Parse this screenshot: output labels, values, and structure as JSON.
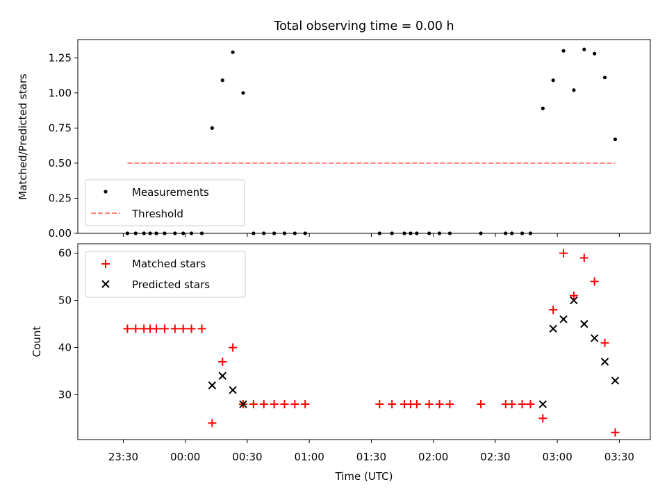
{
  "title": "Total observing time = 0.00 h",
  "xlabel": "Time (UTC)",
  "x_tick_labels": [
    "23:30",
    "00:00",
    "00:30",
    "01:00",
    "01:30",
    "02:00",
    "02:30",
    "03:00",
    "03:30"
  ],
  "colors": {
    "measurement": "#000000",
    "threshold": "#ff7f7f",
    "matched": "#ff0000",
    "predicted": "#000000"
  },
  "chart_data": [
    {
      "type": "scatter",
      "ylabel": "Matched/Predicted stars",
      "xlim_minutes": [
        -52,
        225
      ],
      "ylim": [
        0,
        1.38
      ],
      "yticks": [
        0,
        0.25,
        0.5,
        0.75,
        1.0,
        1.25
      ],
      "ytick_labels": [
        "0.00",
        "0.25",
        "0.50",
        "0.75",
        "1.00",
        "1.25"
      ],
      "legend": {
        "position": "lower-left",
        "entries": [
          "Measurements",
          "Threshold"
        ]
      },
      "series": [
        {
          "name": "Measurements",
          "marker": "dot",
          "points": [
            [
              "23:32",
              0.0
            ],
            [
              "23:36",
              0.0
            ],
            [
              "23:40",
              0.0
            ],
            [
              "23:43",
              0.0
            ],
            [
              "23:46",
              0.0
            ],
            [
              "23:50",
              0.0
            ],
            [
              "23:55",
              0.0
            ],
            [
              "23:59",
              0.0
            ],
            [
              "00:03",
              0.0
            ],
            [
              "00:08",
              0.0
            ],
            [
              "00:13",
              0.75
            ],
            [
              "00:18",
              1.09
            ],
            [
              "00:23",
              1.29
            ],
            [
              "00:28",
              1.0
            ],
            [
              "00:33",
              0.0
            ],
            [
              "00:38",
              0.0
            ],
            [
              "00:43",
              0.0
            ],
            [
              "00:48",
              0.0
            ],
            [
              "00:53",
              0.0
            ],
            [
              "00:58",
              0.0
            ],
            [
              "01:34",
              0.0
            ],
            [
              "01:40",
              0.0
            ],
            [
              "01:46",
              0.0
            ],
            [
              "01:49",
              0.0
            ],
            [
              "01:52",
              0.0
            ],
            [
              "01:58",
              0.0
            ],
            [
              "02:03",
              0.0
            ],
            [
              "02:08",
              0.0
            ],
            [
              "02:23",
              0.0
            ],
            [
              "02:35",
              0.0
            ],
            [
              "02:38",
              0.0
            ],
            [
              "02:43",
              0.0
            ],
            [
              "02:47",
              0.0
            ],
            [
              "02:53",
              0.89
            ],
            [
              "02:58",
              1.09
            ],
            [
              "03:03",
              1.3
            ],
            [
              "03:08",
              1.02
            ],
            [
              "03:13",
              1.31
            ],
            [
              "03:18",
              1.28
            ],
            [
              "03:23",
              1.11
            ],
            [
              "03:28",
              0.67
            ]
          ]
        },
        {
          "name": "Threshold",
          "marker": "dashed-line",
          "points": [
            [
              "23:32",
              0.5
            ],
            [
              "03:28",
              0.5
            ]
          ]
        }
      ]
    },
    {
      "type": "scatter",
      "ylabel": "Count",
      "xlim_minutes": [
        -52,
        225
      ],
      "ylim": [
        20.5,
        62
      ],
      "yticks": [
        30,
        40,
        50,
        60
      ],
      "ytick_labels": [
        "30",
        "40",
        "50",
        "60"
      ],
      "legend": {
        "position": "upper-left",
        "entries": [
          "Matched stars",
          "Predicted stars"
        ]
      },
      "series": [
        {
          "name": "Matched stars",
          "marker": "plus",
          "points": [
            [
              "23:32",
              44
            ],
            [
              "23:36",
              44
            ],
            [
              "23:40",
              44
            ],
            [
              "23:43",
              44
            ],
            [
              "23:46",
              44
            ],
            [
              "23:50",
              44
            ],
            [
              "23:55",
              44
            ],
            [
              "23:59",
              44
            ],
            [
              "00:03",
              44
            ],
            [
              "00:08",
              44
            ],
            [
              "00:13",
              24
            ],
            [
              "00:18",
              37
            ],
            [
              "00:23",
              40
            ],
            [
              "00:28",
              28
            ],
            [
              "00:33",
              28
            ],
            [
              "00:38",
              28
            ],
            [
              "00:43",
              28
            ],
            [
              "00:48",
              28
            ],
            [
              "00:53",
              28
            ],
            [
              "00:58",
              28
            ],
            [
              "01:34",
              28
            ],
            [
              "01:40",
              28
            ],
            [
              "01:46",
              28
            ],
            [
              "01:49",
              28
            ],
            [
              "01:52",
              28
            ],
            [
              "01:58",
              28
            ],
            [
              "02:03",
              28
            ],
            [
              "02:08",
              28
            ],
            [
              "02:23",
              28
            ],
            [
              "02:35",
              28
            ],
            [
              "02:38",
              28
            ],
            [
              "02:43",
              28
            ],
            [
              "02:47",
              28
            ],
            [
              "02:53",
              25
            ],
            [
              "02:58",
              48
            ],
            [
              "03:03",
              60
            ],
            [
              "03:08",
              51
            ],
            [
              "03:13",
              59
            ],
            [
              "03:18",
              54
            ],
            [
              "03:23",
              41
            ],
            [
              "03:28",
              22
            ]
          ]
        },
        {
          "name": "Predicted stars",
          "marker": "x",
          "points": [
            [
              "00:13",
              32
            ],
            [
              "00:18",
              34
            ],
            [
              "00:23",
              31
            ],
            [
              "00:28",
              28
            ],
            [
              "02:53",
              28
            ],
            [
              "02:58",
              44
            ],
            [
              "03:03",
              46
            ],
            [
              "03:08",
              50
            ],
            [
              "03:13",
              45
            ],
            [
              "03:18",
              42
            ],
            [
              "03:23",
              37
            ],
            [
              "03:28",
              33
            ]
          ]
        }
      ]
    }
  ]
}
